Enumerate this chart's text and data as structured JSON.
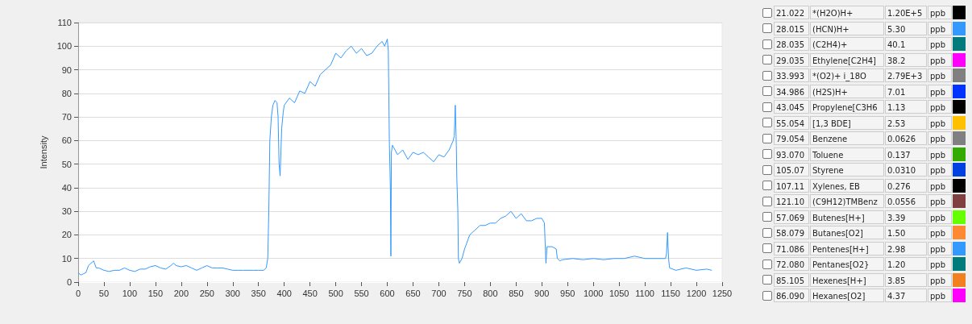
{
  "chart_data": [
    {
      "type": "line",
      "ylabel": "Intensity",
      "color": "#3399ff",
      "xlim": [
        0,
        1250
      ],
      "xticks": [
        0,
        50,
        100,
        150,
        200,
        250,
        300,
        350,
        400,
        450,
        500,
        550,
        600,
        650,
        700,
        750,
        800,
        850,
        900,
        950,
        1000,
        1050,
        1100,
        1150,
        1200,
        1250
      ],
      "ylim": [
        0,
        110
      ],
      "yticks": [
        0,
        10,
        20,
        30,
        40,
        50,
        60,
        70,
        80,
        90,
        100,
        110
      ],
      "grid": "y",
      "marker": "none",
      "line_style": "solid",
      "x": [
        0,
        5,
        10,
        15,
        20,
        25,
        30,
        35,
        40,
        50,
        60,
        70,
        80,
        90,
        100,
        110,
        120,
        130,
        140,
        150,
        160,
        170,
        180,
        185,
        190,
        200,
        210,
        220,
        230,
        240,
        250,
        260,
        270,
        280,
        290,
        300,
        310,
        320,
        330,
        340,
        350,
        360,
        365,
        368,
        370,
        372,
        375,
        378,
        382,
        386,
        388,
        390,
        392,
        395,
        398,
        400,
        410,
        420,
        430,
        440,
        450,
        460,
        470,
        480,
        490,
        500,
        510,
        520,
        530,
        540,
        550,
        560,
        570,
        580,
        590,
        595,
        600,
        602,
        604,
        606,
        607,
        608,
        610,
        620,
        630,
        640,
        650,
        660,
        670,
        680,
        690,
        700,
        710,
        720,
        728,
        730,
        732,
        734,
        735,
        737,
        738,
        740,
        745,
        750,
        760,
        770,
        780,
        790,
        800,
        810,
        820,
        830,
        840,
        850,
        860,
        870,
        880,
        890,
        900,
        905,
        907,
        908,
        910,
        920,
        928,
        930,
        935,
        940,
        960,
        980,
        1000,
        1020,
        1040,
        1060,
        1080,
        1100,
        1120,
        1140,
        1142,
        1144,
        1146,
        1148,
        1160,
        1180,
        1200,
        1220,
        1230
      ],
      "values": [
        4,
        3,
        3.5,
        4,
        7,
        8,
        9,
        6,
        6,
        5,
        4.5,
        5,
        5,
        6,
        5,
        4.5,
        5.5,
        5.5,
        6.5,
        7,
        6,
        5.5,
        7,
        8,
        7,
        6.5,
        7,
        6,
        5,
        6,
        7,
        6,
        6,
        6,
        5.5,
        5,
        5,
        5,
        5,
        5,
        5,
        5,
        6,
        10,
        30,
        60,
        70,
        75,
        77,
        76,
        70,
        50,
        45,
        65,
        72,
        75,
        78,
        76,
        81,
        80,
        85,
        83,
        88,
        90,
        92,
        97,
        95,
        98,
        100,
        97,
        99,
        96,
        97,
        100,
        102,
        100,
        103,
        98,
        60,
        40,
        11,
        55,
        58,
        54,
        56,
        52,
        55,
        54,
        55,
        53,
        51,
        54,
        53,
        56,
        60,
        62,
        75,
        58,
        44,
        30,
        10,
        8,
        10,
        14,
        20,
        22,
        24,
        24,
        25,
        25,
        27,
        28,
        30,
        27,
        29,
        26,
        26,
        27,
        27,
        25,
        13,
        8,
        15,
        15,
        14,
        10,
        9,
        9.5,
        10,
        9.5,
        10,
        9.5,
        10,
        10,
        11,
        10,
        10,
        10,
        12,
        21,
        10,
        6,
        5,
        6,
        5,
        5.5,
        5
      ]
    },
    {
      "type": "other",
      "colors": [
        "#000000",
        "#3399ff",
        "#007b7b",
        "#ff00ff",
        "#808080",
        "#0033ff",
        "#000000",
        "#ffc000",
        "#808080",
        "#33aa00",
        "#0040e0",
        "#000000",
        "#804040",
        "#66ff00",
        "#ff8833",
        "#3399ff",
        "#007b7b",
        "#f08020",
        "#ff00ff"
      ],
      "annotations": [
        "21.022",
        "*(H2O)H+",
        "1.20E+5",
        "ppb",
        "28.015",
        "(HCN)H+",
        "5.30",
        "ppb",
        "28.035",
        "(C2H4)+",
        "40.1",
        "ppb",
        "29.035",
        "Ethylene[C2H4]",
        "38.2",
        "ppb",
        "33.993",
        "*(O2)+ i_18O",
        "2.79E+3",
        "ppb",
        "34.986",
        "(H2S)H+",
        "7.01",
        "ppb",
        "43.045",
        "Propylene[C3H6",
        "1.13",
        "ppb",
        "55.054",
        "[1,3 BDE]",
        "2.53",
        "ppb",
        "79.054",
        "Benzene",
        "0.0626",
        "ppb",
        "93.070",
        "Toluene",
        "0.137",
        "ppb",
        "105.07",
        "Styrene",
        "0.0310",
        "ppb",
        "107.11",
        "Xylenes, EB",
        "0.276",
        "ppb",
        "121.10",
        "(C9H12)TMBenz",
        "0.0556",
        "ppb",
        "57.069",
        "Butenes[H+]",
        "3.39",
        "ppb",
        "58.079",
        "Butanes[O2]",
        "1.50",
        "ppb",
        "71.086",
        "Pentenes[H+]",
        "2.98",
        "ppb",
        "72.080",
        "Pentanes[O2}",
        "1.20",
        "ppb",
        "85.105",
        "Hexenes[H+]",
        "3.85",
        "ppb",
        "86.090",
        "Hexanes[O2]",
        "4.37",
        "ppb"
      ]
    }
  ]
}
